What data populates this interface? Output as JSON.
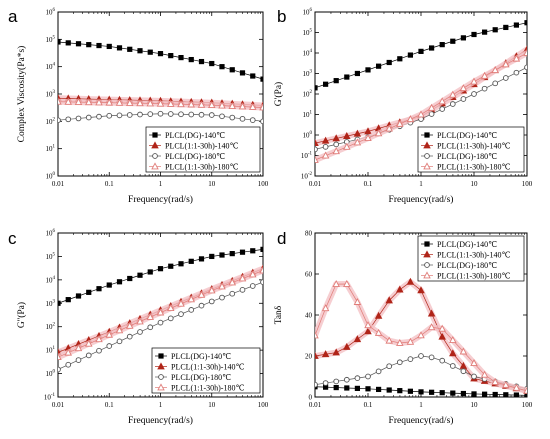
{
  "colors": {
    "black": "#000000",
    "red": "#b02418",
    "gray": "#555555",
    "pink": "#e07c78",
    "halo": "#f4c2c6"
  },
  "chart_data": [
    {
      "panel": "a",
      "type": "line",
      "xscale": "log",
      "yscale": "log",
      "xlim": [
        0.01,
        100
      ],
      "ylim": [
        1,
        1000000
      ],
      "xticks": [
        "0.01",
        "0.1",
        "1",
        "10",
        "100"
      ],
      "yticks": [
        "10^0",
        "10^1",
        "10^2",
        "10^3",
        "10^4",
        "10^5",
        "10^6"
      ],
      "xlabel": "Frequency(rad/s)",
      "ylabel": "Complex Viscosity(Pa*s)",
      "legend_position": "bottom-right",
      "series": [
        {
          "name": "PLCL(DG)-140℃",
          "marker": "filled-square",
          "color": "black",
          "points": [
            [
              0.01,
              80000
            ],
            [
              0.1,
              55000
            ],
            [
              1,
              30000
            ],
            [
              10,
              13000
            ],
            [
              100,
              3500
            ]
          ]
        },
        {
          "name": "PLCL(1:1-30h)-140℃",
          "marker": "filled-triangle",
          "color": "red",
          "points": [
            [
              0.01,
              700
            ],
            [
              0.1,
              620
            ],
            [
              1,
              560
            ],
            [
              10,
              480
            ],
            [
              100,
              380
            ]
          ]
        },
        {
          "name": "PLCL(DG)-180℃",
          "marker": "open-circle",
          "color": "gray",
          "points": [
            [
              0.01,
              110
            ],
            [
              0.1,
              160
            ],
            [
              1,
              190
            ],
            [
              10,
              170
            ],
            [
              100,
              100
            ]
          ]
        },
        {
          "name": "PLCL(1:1-30h)-180℃",
          "marker": "open-triangle",
          "color": "pink",
          "points": [
            [
              0.01,
              520
            ],
            [
              0.1,
              480
            ],
            [
              1,
              440
            ],
            [
              10,
              390
            ],
            [
              100,
              320
            ]
          ]
        }
      ]
    },
    {
      "panel": "b",
      "type": "line",
      "xscale": "log",
      "yscale": "log",
      "xlim": [
        0.01,
        100
      ],
      "ylim": [
        0.01,
        1000000
      ],
      "xticks": [
        "0.01",
        "0.1",
        "1",
        "10",
        "100"
      ],
      "yticks": [
        "10^-2",
        "10^-1",
        "10^0",
        "10^1",
        "10^2",
        "10^3",
        "10^4",
        "10^5",
        "10^6"
      ],
      "xlabel": "Frequency(rad/s)",
      "ylabel": "G'(Pa)",
      "legend_position": "bottom-right",
      "series": [
        {
          "name": "PLCL(DG)-140℃",
          "marker": "filled-square",
          "color": "black",
          "points": [
            [
              0.01,
              200
            ],
            [
              0.1,
              1500
            ],
            [
              1,
              12000
            ],
            [
              10,
              80000
            ],
            [
              100,
              300000
            ]
          ]
        },
        {
          "name": "PLCL(1:1-30h)-140℃",
          "marker": "filled-triangle",
          "color": "red",
          "points": [
            [
              0.01,
              0.4
            ],
            [
              0.1,
              1.5
            ],
            [
              1,
              8
            ],
            [
              10,
              300
            ],
            [
              100,
              15000
            ]
          ]
        },
        {
          "name": "PLCL(DG)-180℃",
          "marker": "open-circle",
          "color": "gray",
          "points": [
            [
              0.01,
              0.2
            ],
            [
              0.1,
              0.8
            ],
            [
              1,
              6
            ],
            [
              10,
              100
            ],
            [
              100,
              2000
            ]
          ]
        },
        {
          "name": "PLCL(1:1-30h)-180℃",
          "marker": "open-triangle",
          "color": "pink",
          "points": [
            [
              0.01,
              0.06
            ],
            [
              0.1,
              0.7
            ],
            [
              1,
              10
            ],
            [
              10,
              400
            ],
            [
              100,
              10000
            ]
          ]
        }
      ]
    },
    {
      "panel": "c",
      "type": "line",
      "xscale": "log",
      "yscale": "log",
      "xlim": [
        0.01,
        100
      ],
      "ylim": [
        0.1,
        1000000
      ],
      "xticks": [
        "0.01",
        "0.1",
        "1",
        "10",
        "100"
      ],
      "yticks": [
        "10^-1",
        "10^0",
        "10^1",
        "10^2",
        "10^3",
        "10^4",
        "10^5",
        "10^6"
      ],
      "xlabel": "Frequency(rad/s)",
      "ylabel": "G''(Pa)",
      "legend_position": "bottom-right",
      "series": [
        {
          "name": "PLCL(DG)-140℃",
          "marker": "filled-square",
          "color": "black",
          "points": [
            [
              0.01,
              1000
            ],
            [
              0.1,
              6000
            ],
            [
              1,
              30000
            ],
            [
              10,
              100000
            ],
            [
              100,
              200000
            ]
          ]
        },
        {
          "name": "PLCL(1:1-30h)-140℃",
          "marker": "filled-triangle",
          "color": "red",
          "points": [
            [
              0.01,
              8
            ],
            [
              0.1,
              60
            ],
            [
              1,
              500
            ],
            [
              10,
              4000
            ],
            [
              100,
              30000
            ]
          ]
        },
        {
          "name": "PLCL(DG)-180℃",
          "marker": "open-circle",
          "color": "gray",
          "points": [
            [
              0.01,
              1.5
            ],
            [
              0.1,
              15
            ],
            [
              1,
              150
            ],
            [
              10,
              1200
            ],
            [
              100,
              8000
            ]
          ]
        },
        {
          "name": "PLCL(1:1-30h)-180℃",
          "marker": "open-triangle",
          "color": "pink",
          "points": [
            [
              0.01,
              5
            ],
            [
              0.1,
              45
            ],
            [
              1,
              400
            ],
            [
              10,
              3500
            ],
            [
              100,
              25000
            ]
          ]
        }
      ]
    },
    {
      "panel": "d",
      "type": "line",
      "xscale": "log",
      "yscale": "linear",
      "xlim": [
        0.01,
        100
      ],
      "ylim": [
        0,
        80
      ],
      "xticks": [
        "0.01",
        "0.1",
        "1",
        "10",
        "100"
      ],
      "yticks": [
        "0",
        "20",
        "40",
        "60",
        "80"
      ],
      "xlabel": "Frequency(rad/s)",
      "ylabel": "Tanδ",
      "legend_position": "top-right",
      "series": [
        {
          "name": "PLCL(DG)-140℃",
          "marker": "filled-square",
          "color": "black",
          "points": [
            [
              0.01,
              5
            ],
            [
              0.1,
              4
            ],
            [
              1,
              2.5
            ],
            [
              10,
              1.5
            ],
            [
              100,
              0.8
            ]
          ]
        },
        {
          "name": "PLCL(1:1-30h)-140℃",
          "marker": "filled-triangle",
          "color": "red",
          "points": [
            [
              0.01,
              20
            ],
            [
              0.03,
              22
            ],
            [
              0.1,
              32
            ],
            [
              0.3,
              50
            ],
            [
              0.7,
              57
            ],
            [
              1,
              52
            ],
            [
              3,
              25
            ],
            [
              10,
              9
            ],
            [
              100,
              3
            ]
          ]
        },
        {
          "name": "PLCL(DG)-180℃",
          "marker": "open-circle",
          "color": "gray",
          "points": [
            [
              0.01,
              6
            ],
            [
              0.1,
              10
            ],
            [
              0.3,
              16
            ],
            [
              1,
              20
            ],
            [
              2,
              19
            ],
            [
              10,
              10
            ],
            [
              100,
              4
            ]
          ]
        },
        {
          "name": "PLCL(1:1-30h)-180℃",
          "marker": "open-triangle",
          "color": "pink",
          "points": [
            [
              0.01,
              30
            ],
            [
              0.02,
              50
            ],
            [
              0.03,
              59
            ],
            [
              0.05,
              52
            ],
            [
              0.1,
              35
            ],
            [
              0.3,
              26
            ],
            [
              0.7,
              27
            ],
            [
              2,
              36
            ],
            [
              5,
              25
            ],
            [
              20,
              8
            ],
            [
              100,
              3
            ]
          ]
        }
      ]
    }
  ]
}
